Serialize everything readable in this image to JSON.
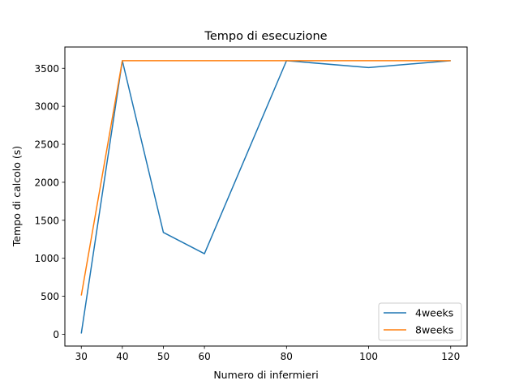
{
  "chart_data": {
    "type": "line",
    "title": "Tempo di esecuzione",
    "xlabel": "Numero di infermieri",
    "ylabel": "Tempo di calcolo (s)",
    "x": [
      30,
      40,
      50,
      60,
      80,
      100,
      120
    ],
    "xticks": [
      30,
      40,
      50,
      60,
      80,
      100,
      120
    ],
    "yticks": [
      0,
      500,
      1000,
      1500,
      2000,
      2500,
      3000,
      3500
    ],
    "xlim": [
      26,
      124
    ],
    "ylim": [
      -155,
      3780
    ],
    "grid": false,
    "legend_position": "lower right",
    "series": [
      {
        "name": "4weeks",
        "color": "#1f77b4",
        "values": [
          10,
          3600,
          1340,
          1060,
          3600,
          3510,
          3600
        ]
      },
      {
        "name": "8weeks",
        "color": "#ff7f0e",
        "values": [
          510,
          3600,
          3600,
          3600,
          3600,
          3600,
          3600
        ]
      }
    ]
  }
}
